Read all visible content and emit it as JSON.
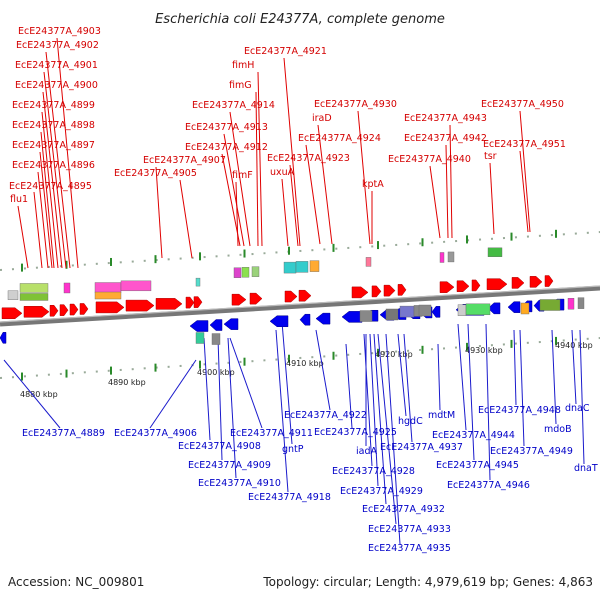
{
  "title": "Escherichia coli E24377A, complete genome",
  "footer": {
    "accession": "Accession: NC_009801",
    "summary": "Topology: circular; Length: 4,979,619 bp; Genes: 4,863"
  },
  "colors": {
    "forward": "#ff0000",
    "reverse": "#0000ee",
    "top_label": "#d40000",
    "bottom_label": "#0000c8",
    "backbone": "#777777"
  },
  "scale_labels": [
    "4880 kbp",
    "4890 kbp",
    "4900 kbp",
    "4910 kbp",
    "4920 kbp",
    "4930 kbp",
    "4940 kbp"
  ],
  "top_genes": [
    "EcE24377A_4903",
    "EcE24377A_4902",
    "EcE24377A_4901",
    "EcE24377A_4900",
    "EcE24377A_4899",
    "EcE24377A_4898",
    "EcE24377A_4897",
    "EcE24377A_4896",
    "EcE24377A_4895",
    "flu1",
    "EcE24377A_4921",
    "fimH",
    "fimG",
    "EcE24377A_4914",
    "EcE24377A_4913",
    "EcE24377A_4912",
    "EcE24377A_4907",
    "EcE24377A_4905",
    "fimF",
    "EcE24377A_4930",
    "iraD",
    "EcE24377A_4924",
    "EcE24377A_4923",
    "uxuA",
    "kptA",
    "EcE24377A_4943",
    "EcE24377A_4942",
    "EcE24377A_4940",
    "EcE24377A_4950",
    "EcE24377A_4951",
    "tsr"
  ],
  "bottom_genes": [
    "EcE24377A_4889",
    "EcE24377A_4906",
    "EcE24377A_4908",
    "EcE24377A_4909",
    "EcE24377A_4910",
    "EcE24377A_4911",
    "gntP",
    "EcE24377A_4918",
    "EcE24377A_4922",
    "EcE24377A_4925",
    "iadA",
    "EcE24377A_4928",
    "EcE24377A_4929",
    "EcE24377A_4932",
    "EcE24377A_4933",
    "EcE24377A_4935",
    "hgdC",
    "EcE24377A_4937",
    "mdtM",
    "EcE24377A_4944",
    "EcE24377A_4945",
    "EcE24377A_4946",
    "EcE24377A_4948",
    "EcE24377A_4949",
    "mdoB",
    "dnaC",
    "dnaT"
  ]
}
